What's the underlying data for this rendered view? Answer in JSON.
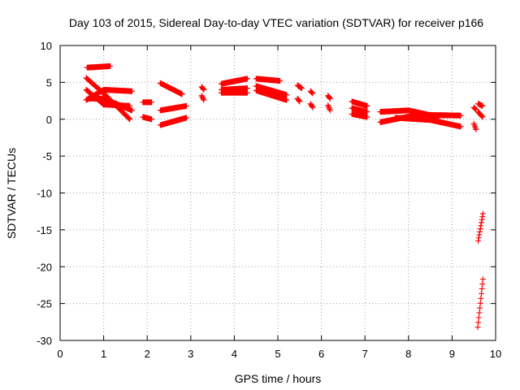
{
  "chart_data": {
    "type": "scatter",
    "title": "Day 103 of 2015, Sidereal Day-to-day VTEC variation (SDTVAR) for receiver p166",
    "xlabel": "GPS time / hours",
    "ylabel": "SDTVAR / TECUs",
    "xlim": [
      0,
      10
    ],
    "ylim": [
      -30,
      10
    ],
    "xticks": [
      0,
      1,
      2,
      3,
      4,
      5,
      6,
      7,
      8,
      9,
      10
    ],
    "yticks": [
      10,
      5,
      0,
      -5,
      -10,
      -15,
      -20,
      -25,
      -30
    ],
    "grid": true,
    "marker": "plus",
    "color": "#ff0000",
    "segments": [
      {
        "x": [
          0.62,
          1.15
        ],
        "y": [
          7.0,
          7.2
        ]
      },
      {
        "x": [
          0.6,
          1.0
        ],
        "y": [
          5.6,
          3.5
        ]
      },
      {
        "x": [
          1.0,
          1.6
        ],
        "y": [
          3.5,
          0.0
        ]
      },
      {
        "x": [
          0.6,
          1.0
        ],
        "y": [
          4.0,
          2.0
        ]
      },
      {
        "x": [
          1.0,
          1.6
        ],
        "y": [
          2.0,
          1.8
        ]
      },
      {
        "x": [
          0.6,
          1.0
        ],
        "y": [
          2.6,
          4.0
        ]
      },
      {
        "x": [
          1.0,
          1.65
        ],
        "y": [
          4.0,
          3.8
        ]
      },
      {
        "x": [
          0.65,
          1.0
        ],
        "y": [
          2.8,
          2.8
        ]
      },
      {
        "x": [
          1.0,
          1.65
        ],
        "y": [
          2.8,
          1.2
        ]
      },
      {
        "x": [
          1.9,
          2.1
        ],
        "y": [
          2.3,
          2.3
        ]
      },
      {
        "x": [
          1.9,
          2.1
        ],
        "y": [
          0.3,
          0.0
        ]
      },
      {
        "x": [
          2.3,
          2.8
        ],
        "y": [
          4.9,
          3.4
        ]
      },
      {
        "x": [
          2.3,
          2.9
        ],
        "y": [
          1.2,
          1.8
        ]
      },
      {
        "x": [
          2.3,
          2.9
        ],
        "y": [
          -0.8,
          0.2
        ]
      },
      {
        "x": [
          3.25,
          3.3
        ],
        "y": [
          4.4,
          4.0
        ]
      },
      {
        "x": [
          3.25,
          3.3
        ],
        "y": [
          3.2,
          2.6
        ]
      },
      {
        "x": [
          3.7,
          4.3
        ],
        "y": [
          4.8,
          5.5
        ]
      },
      {
        "x": [
          3.7,
          4.3
        ],
        "y": [
          4.0,
          4.2
        ]
      },
      {
        "x": [
          3.7,
          4.3
        ],
        "y": [
          3.6,
          3.6
        ]
      },
      {
        "x": [
          4.5,
          5.05
        ],
        "y": [
          5.5,
          5.2
        ]
      },
      {
        "x": [
          4.5,
          5.2
        ],
        "y": [
          4.5,
          3.3
        ]
      },
      {
        "x": [
          4.5,
          5.2
        ],
        "y": [
          3.9,
          2.6
        ]
      },
      {
        "x": [
          5.45,
          5.55
        ],
        "y": [
          4.6,
          4.2
        ]
      },
      {
        "x": [
          5.45,
          5.5
        ],
        "y": [
          2.8,
          2.4
        ]
      },
      {
        "x": [
          5.75,
          5.8
        ],
        "y": [
          3.8,
          3.5
        ]
      },
      {
        "x": [
          5.75,
          5.8
        ],
        "y": [
          2.1,
          1.6
        ]
      },
      {
        "x": [
          6.15,
          6.2
        ],
        "y": [
          3.2,
          2.8
        ]
      },
      {
        "x": [
          6.15,
          6.2
        ],
        "y": [
          1.9,
          1.2
        ]
      },
      {
        "x": [
          6.7,
          7.05
        ],
        "y": [
          2.4,
          1.8
        ]
      },
      {
        "x": [
          6.7,
          7.05
        ],
        "y": [
          1.5,
          1.0
        ]
      },
      {
        "x": [
          6.7,
          7.05
        ],
        "y": [
          0.7,
          0.3
        ]
      },
      {
        "x": [
          7.35,
          8.0
        ],
        "y": [
          1.0,
          1.2
        ]
      },
      {
        "x": [
          8.0,
          8.7
        ],
        "y": [
          1.2,
          0.3
        ]
      },
      {
        "x": [
          7.35,
          8.2
        ],
        "y": [
          -0.4,
          0.6
        ]
      },
      {
        "x": [
          8.2,
          9.2
        ],
        "y": [
          0.6,
          0.5
        ]
      },
      {
        "x": [
          7.7,
          8.5
        ],
        "y": [
          0.2,
          -0.1
        ]
      },
      {
        "x": [
          8.5,
          9.2
        ],
        "y": [
          -0.1,
          -1.0
        ]
      },
      {
        "x": [
          9.5,
          9.55
        ],
        "y": [
          1.6,
          1.3
        ]
      },
      {
        "x": [
          9.5,
          9.55
        ],
        "y": [
          -0.6,
          -1.4
        ]
      },
      {
        "x": [
          9.6,
          9.7
        ],
        "y": [
          2.1,
          1.8
        ]
      },
      {
        "x": [
          9.6,
          9.7
        ],
        "y": [
          1.0,
          0.3
        ]
      },
      {
        "x": [
          9.6,
          9.71
        ],
        "y": [
          -16.5,
          -12.8
        ]
      },
      {
        "x": [
          9.59,
          9.71
        ],
        "y": [
          -28.2,
          -21.7
        ]
      }
    ]
  }
}
